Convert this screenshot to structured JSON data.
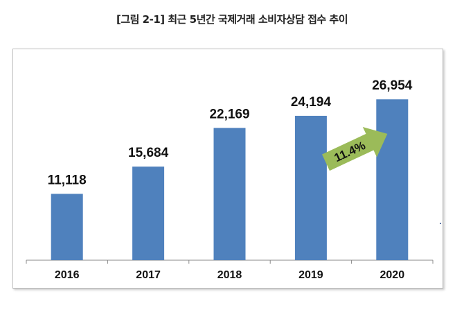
{
  "chart_data": {
    "type": "bar",
    "title": "[그림 2-1] 최근 5년간 국제거래 소비자상담 접수 추이",
    "categories": [
      "2016",
      "2017",
      "2018",
      "2019",
      "2020"
    ],
    "values": [
      11118,
      15684,
      22169,
      24194,
      26954
    ],
    "value_labels": [
      "11,118",
      "15,684",
      "22,169",
      "24,194",
      "26,954"
    ],
    "annotation": "11.4%",
    "xlabel": "",
    "ylabel": "",
    "ylim": [
      0,
      30000
    ],
    "grid": false,
    "colors": {
      "bar": "#4f81bd",
      "arrow": "#9bbb59"
    }
  }
}
